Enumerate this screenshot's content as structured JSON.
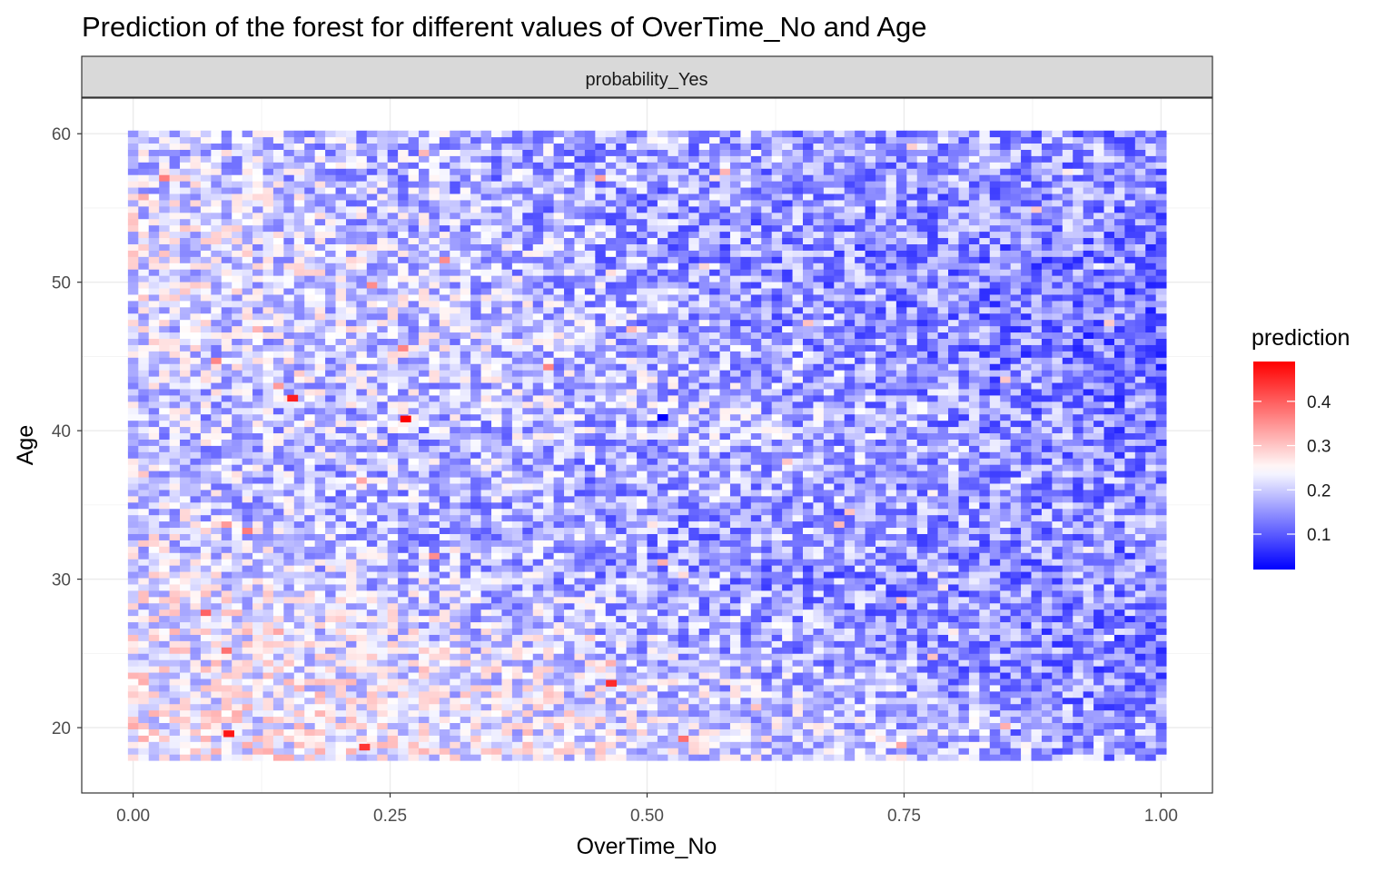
{
  "chart_data": {
    "type": "heatmap",
    "title": "Prediction of the forest for different values of OverTime_No and Age",
    "facet": "probability_Yes",
    "xlabel": "OverTime_No",
    "ylabel": "Age",
    "xlim": [
      -0.05,
      1.05
    ],
    "ylim": [
      15.6,
      62.4
    ],
    "x_ticks": [
      0.0,
      0.25,
      0.5,
      0.75,
      1.0
    ],
    "x_tick_labels": [
      "0.00",
      "0.25",
      "0.50",
      "0.75",
      "1.00"
    ],
    "y_ticks": [
      20,
      30,
      40,
      50,
      60
    ],
    "y_tick_labels": [
      "20",
      "30",
      "40",
      "50",
      "60"
    ],
    "grid": true,
    "tile_range_x": [
      0.0,
      1.0
    ],
    "tile_range_y": [
      18,
      60
    ],
    "grid_resolution": [
      100,
      100
    ],
    "legend": {
      "title": "prediction",
      "position": "right",
      "ticks": [
        0.1,
        0.2,
        0.3,
        0.4
      ],
      "tick_labels": [
        "0.1",
        "0.2",
        "0.3",
        "0.4"
      ],
      "range": [
        0.02,
        0.49
      ],
      "colors": {
        "low": "#0000ff",
        "mid": "#ffffff",
        "high": "#ff0000"
      },
      "midpoint": 0.245
    },
    "highlights": [
      {
        "x": 0.155,
        "y": 42.2,
        "value": 0.46
      },
      {
        "x": 0.265,
        "y": 40.8,
        "value": 0.49
      },
      {
        "x": 0.515,
        "y": 40.9,
        "value": 0.02
      },
      {
        "x": 0.093,
        "y": 19.6,
        "value": 0.47
      },
      {
        "x": 0.465,
        "y": 23.0,
        "value": 0.45
      },
      {
        "x": 0.225,
        "y": 18.7,
        "value": 0.44
      }
    ]
  }
}
